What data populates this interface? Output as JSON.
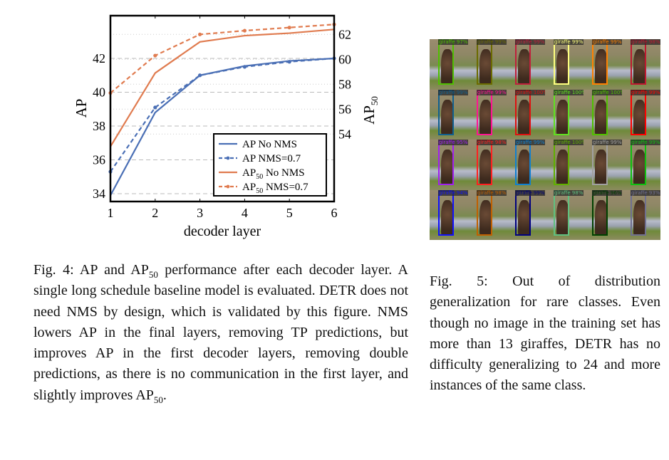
{
  "chart_data": {
    "type": "line",
    "xlabel": "decoder layer",
    "ylabel": "AP",
    "y2label": "AP",
    "y2label_sub": "50",
    "x": [
      1,
      2,
      3,
      4,
      5,
      6
    ],
    "xlim": [
      1,
      6
    ],
    "ylim": [
      33.6,
      43.8
    ],
    "y2lim": [
      48.3,
      63.0
    ],
    "yticks": [
      34,
      36,
      38,
      40,
      42
    ],
    "y2ticks": [
      54,
      56,
      58,
      60,
      62
    ],
    "grid": true,
    "legend": "bottom-right",
    "series": [
      {
        "name": "AP No NMS",
        "sub": "",
        "name_end": "",
        "axis": "left",
        "style": "solid",
        "color": "#4a6fb5",
        "values": [
          33.9,
          38.8,
          41.0,
          41.55,
          41.85,
          42.0
        ]
      },
      {
        "name": "AP NMS=0.7",
        "sub": "",
        "name_end": "",
        "axis": "left",
        "style": "dashed",
        "color": "#4a6fb5",
        "values": [
          35.3,
          39.1,
          41.0,
          41.5,
          41.8,
          42.0
        ]
      },
      {
        "name": "AP",
        "sub": "50",
        "name_end": " No NMS",
        "axis": "right",
        "style": "solid",
        "color": "#e07b4f",
        "values": [
          53.0,
          58.9,
          61.4,
          61.9,
          62.1,
          62.4
        ]
      },
      {
        "name": "AP",
        "sub": "50",
        "name_end": " NMS=0.7",
        "axis": "right",
        "style": "dashed",
        "color": "#e07b4f",
        "values": [
          57.3,
          60.3,
          62.0,
          62.3,
          62.55,
          62.8
        ]
      }
    ]
  },
  "fig4": {
    "label": "Fig. 4:",
    "t1": "AP and AP",
    "s1": "50",
    "t2": " performance after each decoder layer. A single long schedule baseline model is evaluated. DETR does not need NMS by design, which is validated by this figure. NMS lowers AP in the final layers, removing TP predictions, but improves AP in the first decoder layers, removing double predictions, as there is no communication in the first layer, and slightly improves AP",
    "s2": "50",
    "t3": "."
  },
  "fig5": {
    "label": "Fig. 5:",
    "text": "Out of distribution generalization for rare classes. Even though no image in the training set has more than 13 giraffes, DETR has no difficulty generalizing to 24 and more instances of the same class."
  },
  "detections": [
    {
      "label": "giraffe 97%",
      "color": "#4fbf00"
    },
    {
      "label": "giraffe 99%",
      "color": "#6b6b00"
    },
    {
      "label": "giraffe 99%",
      "color": "#c0203c"
    },
    {
      "label": "giraffe 99%",
      "color": "#ffff80"
    },
    {
      "label": "giraffe 99%",
      "color": "#ff8000"
    },
    {
      "label": "giraffe 98%",
      "color": "#c01830"
    },
    {
      "label": "giraffe 99%",
      "color": "#106090"
    },
    {
      "label": "giraffe 99%",
      "color": "#ff1493"
    },
    {
      "label": "giraffe 100%",
      "color": "#e01010"
    },
    {
      "label": "giraffe 100%",
      "color": "#60e020"
    },
    {
      "label": "giraffe 100%",
      "color": "#50c000"
    },
    {
      "label": "giraffe 99%",
      "color": "#ff0000"
    },
    {
      "label": "giraffe 95%",
      "color": "#a020f0"
    },
    {
      "label": "giraffe 98%",
      "color": "#ff2020"
    },
    {
      "label": "giraffe 99%",
      "color": "#1080d0"
    },
    {
      "label": "giraffe 100%",
      "color": "#60b000"
    },
    {
      "label": "giraffe 99%",
      "color": "#a0a0a0"
    },
    {
      "label": "giraffe 99%",
      "color": "#10c010"
    },
    {
      "label": "giraffe 94%",
      "color": "#1010ff"
    },
    {
      "label": "giraffe 98%",
      "color": "#c06000"
    },
    {
      "label": "giraffe 99%",
      "color": "#000080"
    },
    {
      "label": "giraffe 98%",
      "color": "#60c080"
    },
    {
      "label": "giraffe 96%",
      "color": "#004000"
    },
    {
      "label": "giraffe 93%",
      "color": "#707090"
    }
  ]
}
